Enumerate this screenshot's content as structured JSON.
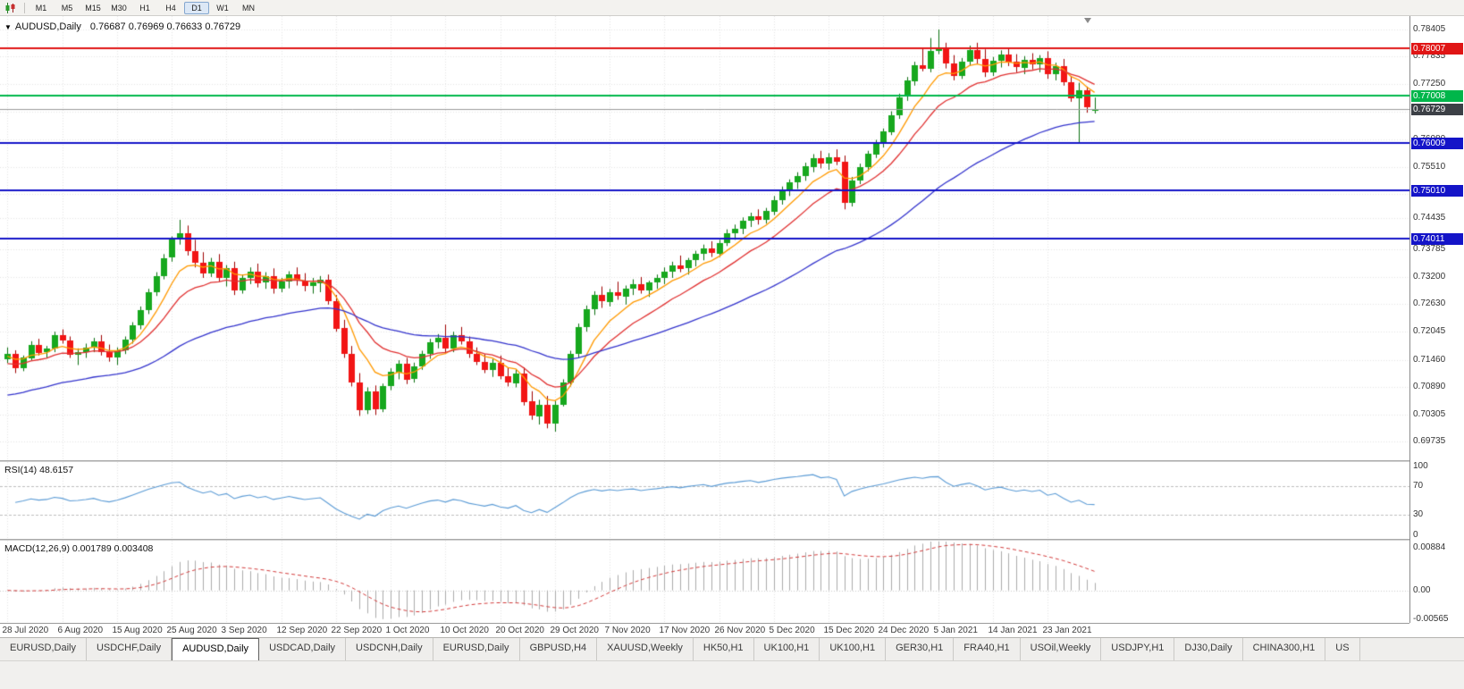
{
  "colors": {
    "bull": "#17a81e",
    "bull_border": "#0b6e10",
    "bear": "#f21515",
    "bear_border": "#9e0000",
    "rsi": "#5b9bd5",
    "macd_hist": "#ababab",
    "macd_signal": "#d23a3a",
    "price_badge": "#3c4046",
    "grid": "#e4e4e4"
  },
  "icons": {
    "symbol_dropdown": "▼"
  },
  "toolbar": {
    "timeframes": [
      "M1",
      "M5",
      "M15",
      "M30",
      "H1",
      "H4",
      "D1",
      "W1",
      "MN"
    ],
    "active_timeframe": "D1"
  },
  "tabs": {
    "items": [
      "EURUSD,Daily",
      "USDCHF,Daily",
      "AUDUSD,Daily",
      "USDCAD,Daily",
      "USDCNH,Daily",
      "EURUSD,Daily",
      "GBPUSD,H4",
      "XAUUSD,Weekly",
      "HK50,H1",
      "UK100,H1",
      "UK100,H1",
      "GER30,H1",
      "FRA40,H1",
      "USOil,Weekly",
      "USDJPY,H1",
      "DJ30,Daily",
      "CHINA300,H1",
      "US"
    ],
    "active_index": 2
  },
  "chart_data": {
    "type": "candlestick",
    "symbol": "AUDUSD",
    "timeframe": "Daily",
    "title": "AUDUSD,Daily",
    "ohlc_text": "0.76687 0.76969 0.76633 0.76729",
    "current_ohlc": [
      0.76687,
      0.76969,
      0.76633,
      0.76729
    ],
    "label_every": 7,
    "x_labels": [
      "28 Jul 2020",
      "6 Aug 2020",
      "15 Aug 2020",
      "25 Aug 2020",
      "3 Sep 2020",
      "12 Sep 2020",
      "22 Sep 2020",
      "1 Oct 2020",
      "10 Oct 2020",
      "20 Oct 2020",
      "29 Oct 2020",
      "7 Nov 2020",
      "17 Nov 2020",
      "26 Nov 2020",
      "5 Dec 2020",
      "15 Dec 2020",
      "24 Dec 2020",
      "5 Jan 2021",
      "14 Jan 2021",
      "23 Jan 2021"
    ],
    "price_axis": {
      "min": 0.6935,
      "max": 0.7868,
      "ticks": [
        "0.78405",
        "0.77835",
        "0.77250",
        "0.76665",
        "0.76080",
        "0.75510",
        "0.74940",
        "0.74435",
        "0.73785",
        "0.73200",
        "0.72630",
        "0.72045",
        "0.71460",
        "0.70890",
        "0.70305",
        "0.69735"
      ]
    },
    "levels": [
      {
        "value": 0.78007,
        "label": "0.78007",
        "color": "#e01515"
      },
      {
        "value": 0.77008,
        "label": "0.77008",
        "color": "#00b64a"
      },
      {
        "value": 0.76009,
        "label": "0.76009",
        "color": "#1414c8"
      },
      {
        "value": 0.7501,
        "label": "0.75010",
        "color": "#1414c8"
      },
      {
        "value": 0.74011,
        "label": "0.74011",
        "color": "#1414c8"
      }
    ],
    "current_price": {
      "value": 0.76729,
      "label": "0.76729"
    },
    "moving_averages": [
      {
        "name": "ma-fast-orange",
        "period": 7,
        "seed": 0.7152,
        "color": "#ff9900"
      },
      {
        "name": "ma-mid-red",
        "period": 14,
        "seed": 0.7135,
        "color": "#e03030"
      },
      {
        "name": "ma-slow-blue",
        "period": 45,
        "seed": 0.7068,
        "color": "#3333cc"
      }
    ],
    "rsi": {
      "label": "RSI(14)",
      "value": "48.6157",
      "period": 14,
      "ticks": [
        100,
        70,
        30,
        0
      ],
      "guide_levels": [
        70,
        30
      ]
    },
    "macd": {
      "label": "MACD(12,26,9)",
      "values": "0.001789 0.003408",
      "fast": 12,
      "slow": 26,
      "signal": 9,
      "ticks": [
        "0.00884",
        "0.00",
        "-0.00565"
      ],
      "tick_values": [
        0.00884,
        0,
        -0.00565
      ],
      "range": [
        -0.0062,
        0.0095
      ]
    },
    "candles": [
      [
        0.7146,
        0.7172,
        0.7139,
        0.7158
      ],
      [
        0.7158,
        0.7166,
        0.7118,
        0.7128
      ],
      [
        0.7128,
        0.7155,
        0.7122,
        0.715
      ],
      [
        0.715,
        0.7185,
        0.7145,
        0.7178
      ],
      [
        0.7178,
        0.719,
        0.7155,
        0.7162
      ],
      [
        0.7162,
        0.7175,
        0.715,
        0.717
      ],
      [
        0.717,
        0.7205,
        0.7162,
        0.7198
      ],
      [
        0.7198,
        0.721,
        0.718,
        0.7187
      ],
      [
        0.7187,
        0.7195,
        0.715,
        0.7157
      ],
      [
        0.7157,
        0.717,
        0.7135,
        0.7162
      ],
      [
        0.7162,
        0.718,
        0.715,
        0.7172
      ],
      [
        0.7172,
        0.7192,
        0.7162,
        0.7185
      ],
      [
        0.7185,
        0.7198,
        0.7155,
        0.7162
      ],
      [
        0.7162,
        0.7178,
        0.7142,
        0.715
      ],
      [
        0.715,
        0.7172,
        0.7135,
        0.7165
      ],
      [
        0.7165,
        0.7195,
        0.7158,
        0.7188
      ],
      [
        0.7188,
        0.7225,
        0.718,
        0.7218
      ],
      [
        0.7218,
        0.7258,
        0.721,
        0.725
      ],
      [
        0.725,
        0.7295,
        0.7242,
        0.7288
      ],
      [
        0.7288,
        0.733,
        0.728,
        0.7322
      ],
      [
        0.7322,
        0.7368,
        0.7315,
        0.736
      ],
      [
        0.736,
        0.7405,
        0.7352,
        0.7398
      ],
      [
        0.7398,
        0.744,
        0.7388,
        0.7412
      ],
      [
        0.7412,
        0.7428,
        0.7365,
        0.7375
      ],
      [
        0.7375,
        0.7398,
        0.734,
        0.735
      ],
      [
        0.735,
        0.7372,
        0.7318,
        0.7328
      ],
      [
        0.7328,
        0.736,
        0.732,
        0.7352
      ],
      [
        0.7352,
        0.7368,
        0.731,
        0.7318
      ],
      [
        0.7318,
        0.7345,
        0.73,
        0.7338
      ],
      [
        0.7338,
        0.7352,
        0.7282,
        0.7292
      ],
      [
        0.7292,
        0.7325,
        0.7285,
        0.7318
      ],
      [
        0.7318,
        0.734,
        0.7305,
        0.7332
      ],
      [
        0.7332,
        0.7348,
        0.7298,
        0.7308
      ],
      [
        0.7308,
        0.733,
        0.7295,
        0.7322
      ],
      [
        0.7322,
        0.7338,
        0.7285,
        0.7295
      ],
      [
        0.7295,
        0.7318,
        0.7288,
        0.731
      ],
      [
        0.731,
        0.7332,
        0.7296,
        0.7325
      ],
      [
        0.7325,
        0.734,
        0.7302,
        0.7312
      ],
      [
        0.7312,
        0.7328,
        0.729,
        0.73
      ],
      [
        0.73,
        0.7318,
        0.7285,
        0.7308
      ],
      [
        0.7308,
        0.7322,
        0.7288,
        0.7315
      ],
      [
        0.7315,
        0.7325,
        0.7262,
        0.727
      ],
      [
        0.727,
        0.7282,
        0.7205,
        0.7212
      ],
      [
        0.7212,
        0.723,
        0.715,
        0.7158
      ],
      [
        0.7158,
        0.7175,
        0.709,
        0.7098
      ],
      [
        0.7098,
        0.7118,
        0.7028,
        0.704
      ],
      [
        0.704,
        0.7088,
        0.7032,
        0.708
      ],
      [
        0.708,
        0.7092,
        0.703,
        0.7042
      ],
      [
        0.7042,
        0.7096,
        0.7036,
        0.709
      ],
      [
        0.709,
        0.7128,
        0.7082,
        0.712
      ],
      [
        0.712,
        0.7145,
        0.7105,
        0.7138
      ],
      [
        0.7138,
        0.715,
        0.7095,
        0.7105
      ],
      [
        0.7105,
        0.714,
        0.7098,
        0.7132
      ],
      [
        0.7132,
        0.7165,
        0.7125,
        0.7158
      ],
      [
        0.7158,
        0.719,
        0.7148,
        0.7182
      ],
      [
        0.7182,
        0.72,
        0.717,
        0.7192
      ],
      [
        0.7192,
        0.722,
        0.716,
        0.717
      ],
      [
        0.717,
        0.7205,
        0.7162,
        0.7198
      ],
      [
        0.7198,
        0.7215,
        0.7178,
        0.7185
      ],
      [
        0.7185,
        0.7195,
        0.715,
        0.7158
      ],
      [
        0.7158,
        0.7172,
        0.7135,
        0.7142
      ],
      [
        0.7142,
        0.7158,
        0.7118,
        0.7125
      ],
      [
        0.7125,
        0.7148,
        0.711,
        0.714
      ],
      [
        0.714,
        0.7155,
        0.7105,
        0.7112
      ],
      [
        0.7112,
        0.713,
        0.709,
        0.7098
      ],
      [
        0.7098,
        0.7125,
        0.7088,
        0.7118
      ],
      [
        0.7118,
        0.713,
        0.705,
        0.7058
      ],
      [
        0.7058,
        0.708,
        0.702,
        0.7028
      ],
      [
        0.7028,
        0.7062,
        0.701,
        0.7052
      ],
      [
        0.7052,
        0.707,
        0.7002,
        0.7012
      ],
      [
        0.7012,
        0.706,
        0.6995,
        0.7052
      ],
      [
        0.7052,
        0.7105,
        0.7048,
        0.7098
      ],
      [
        0.7098,
        0.7165,
        0.709,
        0.7158
      ],
      [
        0.7158,
        0.7222,
        0.715,
        0.7215
      ],
      [
        0.7215,
        0.726,
        0.7205,
        0.7252
      ],
      [
        0.7252,
        0.729,
        0.724,
        0.7282
      ],
      [
        0.7282,
        0.73,
        0.7255,
        0.7268
      ],
      [
        0.7268,
        0.7295,
        0.7258,
        0.7288
      ],
      [
        0.7288,
        0.731,
        0.7272,
        0.728
      ],
      [
        0.728,
        0.7302,
        0.7262,
        0.7296
      ],
      [
        0.7296,
        0.7315,
        0.7282,
        0.7305
      ],
      [
        0.7305,
        0.732,
        0.7285,
        0.7292
      ],
      [
        0.7292,
        0.7312,
        0.7278,
        0.7308
      ],
      [
        0.7308,
        0.7325,
        0.7295,
        0.7318
      ],
      [
        0.7318,
        0.734,
        0.7305,
        0.7332
      ],
      [
        0.7332,
        0.7352,
        0.7318,
        0.7345
      ],
      [
        0.7345,
        0.7365,
        0.733,
        0.7338
      ],
      [
        0.7338,
        0.736,
        0.7325,
        0.7355
      ],
      [
        0.7355,
        0.7375,
        0.7342,
        0.7368
      ],
      [
        0.7368,
        0.7388,
        0.7355,
        0.738
      ],
      [
        0.738,
        0.7395,
        0.7362,
        0.737
      ],
      [
        0.737,
        0.7398,
        0.7362,
        0.7392
      ],
      [
        0.7392,
        0.742,
        0.7385,
        0.7412
      ],
      [
        0.7412,
        0.743,
        0.7398,
        0.7422
      ],
      [
        0.7422,
        0.7445,
        0.741,
        0.7438
      ],
      [
        0.7438,
        0.7455,
        0.7425,
        0.7448
      ],
      [
        0.7448,
        0.7462,
        0.743,
        0.744
      ],
      [
        0.744,
        0.7465,
        0.7432,
        0.7458
      ],
      [
        0.7458,
        0.749,
        0.745,
        0.7482
      ],
      [
        0.7482,
        0.751,
        0.7472,
        0.7502
      ],
      [
        0.7502,
        0.7525,
        0.749,
        0.7518
      ],
      [
        0.7518,
        0.754,
        0.7505,
        0.7532
      ],
      [
        0.7532,
        0.756,
        0.7522,
        0.7552
      ],
      [
        0.7552,
        0.7578,
        0.754,
        0.757
      ],
      [
        0.757,
        0.7585,
        0.7548,
        0.7558
      ],
      [
        0.7558,
        0.758,
        0.7545,
        0.7572
      ],
      [
        0.7572,
        0.7588,
        0.7555,
        0.7562
      ],
      [
        0.7562,
        0.7575,
        0.7462,
        0.7475
      ],
      [
        0.7475,
        0.753,
        0.7468,
        0.7522
      ],
      [
        0.7522,
        0.7558,
        0.7515,
        0.755
      ],
      [
        0.755,
        0.7585,
        0.7542,
        0.7578
      ],
      [
        0.7578,
        0.7608,
        0.757,
        0.76
      ],
      [
        0.76,
        0.7632,
        0.7592,
        0.7625
      ],
      [
        0.7625,
        0.7668,
        0.7618,
        0.766
      ],
      [
        0.766,
        0.7705,
        0.7652,
        0.7698
      ],
      [
        0.7698,
        0.774,
        0.769,
        0.7732
      ],
      [
        0.7732,
        0.7772,
        0.7722,
        0.7765
      ],
      [
        0.7765,
        0.7802,
        0.7752,
        0.7758
      ],
      [
        0.7758,
        0.7822,
        0.775,
        0.7795
      ],
      [
        0.7795,
        0.784,
        0.7788,
        0.7802
      ],
      [
        0.7802,
        0.7812,
        0.7758,
        0.7768
      ],
      [
        0.7768,
        0.7786,
        0.7733,
        0.7742
      ],
      [
        0.7742,
        0.778,
        0.7736,
        0.7772
      ],
      [
        0.7772,
        0.7806,
        0.7764,
        0.7796
      ],
      [
        0.7796,
        0.7812,
        0.7768,
        0.7778
      ],
      [
        0.7778,
        0.7798,
        0.774,
        0.775
      ],
      [
        0.775,
        0.7782,
        0.7742,
        0.7774
      ],
      [
        0.7774,
        0.7796,
        0.776,
        0.7788
      ],
      [
        0.7788,
        0.78,
        0.7763,
        0.7772
      ],
      [
        0.7772,
        0.7788,
        0.775,
        0.776
      ],
      [
        0.776,
        0.7784,
        0.7746,
        0.7776
      ],
      [
        0.7776,
        0.779,
        0.7756,
        0.7766
      ],
      [
        0.7766,
        0.7786,
        0.775,
        0.778
      ],
      [
        0.778,
        0.7794,
        0.7736,
        0.7746
      ],
      [
        0.7746,
        0.777,
        0.7733,
        0.7763
      ],
      [
        0.7763,
        0.7778,
        0.7722,
        0.773
      ],
      [
        0.773,
        0.7742,
        0.7688,
        0.7696
      ],
      [
        0.7696,
        0.7728,
        0.7601,
        0.7712
      ],
      [
        0.7712,
        0.772,
        0.7665,
        0.7676
      ],
      [
        0.76687,
        0.76969,
        0.76633,
        0.76729
      ]
    ]
  }
}
